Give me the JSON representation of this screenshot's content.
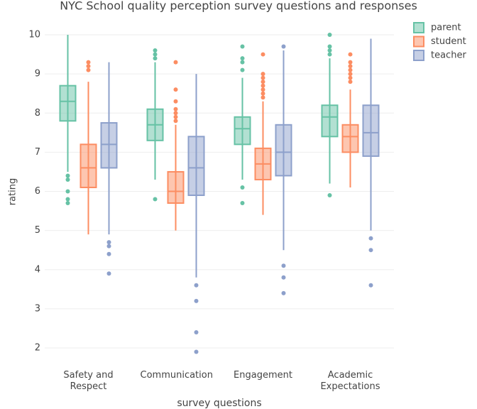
{
  "chart_data": {
    "type": "box",
    "title": "NYC School quality perception survey questions and responses",
    "x_label": "survey questions",
    "y_label": "rating",
    "categories": [
      "Safety and Respect",
      "Communication",
      "Engagement",
      "Academic Expectations"
    ],
    "ylim": [
      1.7,
      10.3
    ],
    "yticks": [
      2,
      3,
      4,
      5,
      6,
      7,
      8,
      9,
      10
    ],
    "grid": true,
    "legend": "top-right",
    "series": [
      {
        "name": "parent",
        "color": "#66c2a5",
        "boxes": [
          {
            "min": 6.5,
            "q1": 7.8,
            "median": 8.3,
            "q3": 8.7,
            "max": 10,
            "outliers": [
              6.4,
              6.3,
              6.0,
              5.8,
              5.7
            ]
          },
          {
            "min": 6.3,
            "q1": 7.3,
            "median": 7.7,
            "q3": 8.1,
            "max": 9.3,
            "outliers": [
              9.6,
              9.5,
              9.4,
              5.8
            ]
          },
          {
            "min": 6.3,
            "q1": 7.2,
            "median": 7.6,
            "q3": 7.9,
            "max": 8.9,
            "outliers": [
              9.7,
              9.4,
              9.3,
              9.1,
              6.1,
              5.7
            ]
          },
          {
            "min": 6.2,
            "q1": 7.4,
            "median": 7.9,
            "q3": 8.2,
            "max": 9.4,
            "outliers": [
              10,
              9.7,
              9.6,
              9.5,
              5.9
            ]
          }
        ]
      },
      {
        "name": "student",
        "color": "#fc8d62",
        "boxes": [
          {
            "min": 4.9,
            "q1": 6.1,
            "median": 6.6,
            "q3": 7.2,
            "max": 8.8,
            "outliers": [
              9.3,
              9.2,
              9.1
            ]
          },
          {
            "min": 5.0,
            "q1": 5.7,
            "median": 6.0,
            "q3": 6.5,
            "max": 7.7,
            "outliers": [
              9.3,
              8.6,
              8.3,
              8.1,
              8.0,
              7.9,
              7.8
            ]
          },
          {
            "min": 5.4,
            "q1": 6.3,
            "median": 6.7,
            "q3": 7.1,
            "max": 8.3,
            "outliers": [
              9.5,
              9.0,
              8.9,
              8.8,
              8.7,
              8.6,
              8.5,
              8.4
            ]
          },
          {
            "min": 6.1,
            "q1": 7.0,
            "median": 7.4,
            "q3": 7.7,
            "max": 8.6,
            "outliers": [
              9.5,
              9.3,
              9.2,
              9.1,
              9.0,
              8.9,
              8.8
            ]
          }
        ]
      },
      {
        "name": "teacher",
        "color": "#8da0cb",
        "boxes": [
          {
            "min": 4.9,
            "q1": 6.6,
            "median": 7.2,
            "q3": 7.75,
            "max": 9.3,
            "outliers": [
              4.7,
              4.6,
              4.4,
              3.9
            ]
          },
          {
            "min": 3.8,
            "q1": 5.9,
            "median": 6.6,
            "q3": 7.4,
            "max": 9.0,
            "outliers": [
              3.6,
              3.2,
              2.4,
              1.9
            ]
          },
          {
            "min": 4.5,
            "q1": 6.4,
            "median": 7.0,
            "q3": 7.7,
            "max": 9.6,
            "outliers": [
              9.7,
              4.1,
              3.8,
              3.4
            ]
          },
          {
            "min": 5.0,
            "q1": 6.9,
            "median": 7.5,
            "q3": 8.2,
            "max": 9.9,
            "outliers": [
              4.8,
              4.5,
              3.6
            ]
          }
        ]
      }
    ]
  }
}
